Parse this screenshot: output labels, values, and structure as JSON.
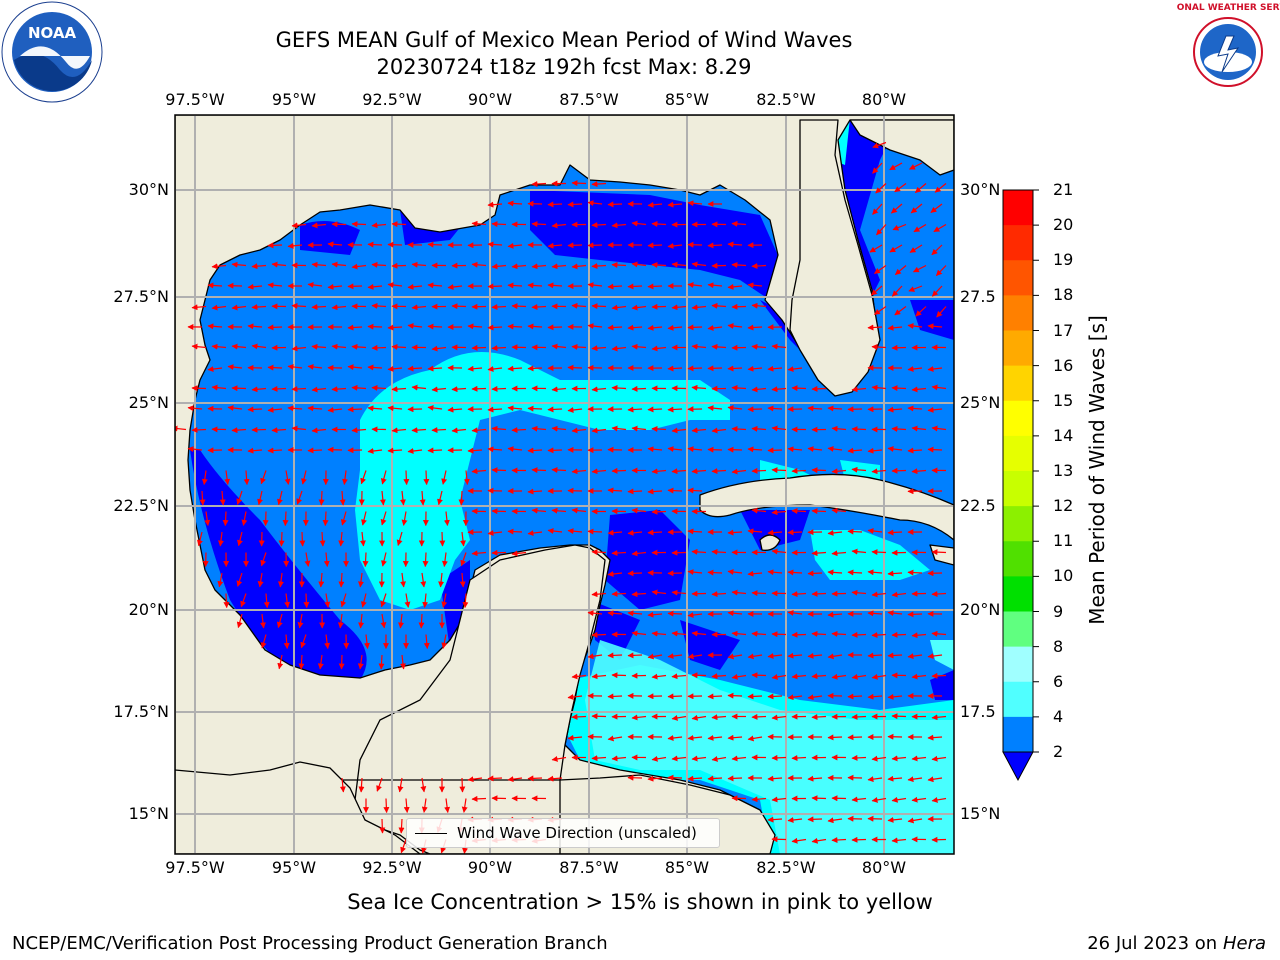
{
  "title": {
    "line1": "GEFS MEAN Gulf of Mexico Mean Period of Wind Waves",
    "line2": "20230724 t18z 192h fcst   Max: 8.29"
  },
  "map": {
    "lon_labels": [
      "97.5°W",
      "95°W",
      "92.5°W",
      "90°W",
      "87.5°W",
      "85°W",
      "82.5°W",
      "80°W"
    ],
    "lat_labels_left": [
      "30°N",
      "27.5°N",
      "25°N",
      "22.5°N",
      "20°N",
      "17.5°N",
      "15°N"
    ],
    "lat_labels_right": [
      "30°N",
      "27.5",
      "25°N",
      "22.5",
      "20°N",
      "17.5",
      "15°N"
    ],
    "extent": {
      "lon_min": -98,
      "lon_max": -78.3,
      "lat_min": 14,
      "lat_max": 31.8
    },
    "land_color": "#efeddc",
    "arrow_color": "#ff0000",
    "gridlines": true
  },
  "colorbar": {
    "title": "Mean Period of Wind Waves [s]",
    "labels": [
      "21",
      "20",
      "19",
      "18",
      "17",
      "16",
      "15",
      "14",
      "13",
      "12",
      "11",
      "10",
      "9",
      "8",
      "6",
      "4",
      "2"
    ],
    "levels": [
      21,
      20,
      19,
      18,
      17,
      16,
      15,
      14,
      13,
      12,
      11,
      10,
      9,
      8,
      6,
      4,
      2
    ],
    "colors": [
      "#ff0000",
      "#ff2a00",
      "#ff5500",
      "#ff8000",
      "#ffaa00",
      "#ffd400",
      "#ffff00",
      "#e6ff00",
      "#c8ff00",
      "#8cf000",
      "#50e000",
      "#00e000",
      "#60ff80",
      "#a0ffff",
      "#50ffff",
      "#00ffff",
      "#0080ff"
    ],
    "under_color": "#0000ff"
  },
  "legend": {
    "label": "Wind Wave Direction (unscaled)"
  },
  "footnote": "Sea Ice Concentration > 15% is shown in pink to yellow",
  "credit": "NCEP/EMC/Verification Post Processing Product Generation Branch",
  "date_run": {
    "date": "26 Jul 2023 on ",
    "machine": "Hera"
  },
  "logos": {
    "left": {
      "icon": "noaa-logo-icon",
      "text": "NOAA"
    },
    "right": {
      "icon": "nws-logo-icon",
      "text": "NATIONAL WEATHER SERVICE"
    }
  }
}
